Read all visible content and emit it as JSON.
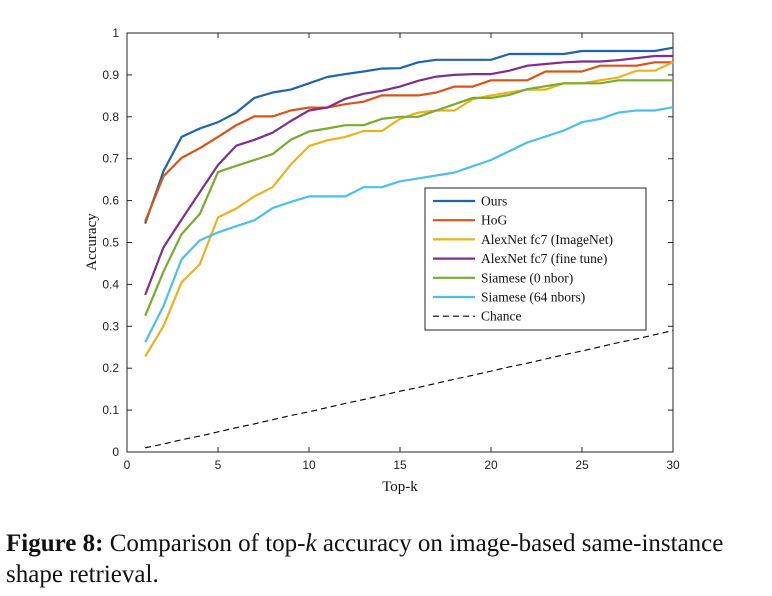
{
  "caption": {
    "label": "Figure 8:",
    "text_before": " Comparison of top-",
    "math": "k",
    "text_after": " accuracy on image-based same-instance shape retrieval."
  },
  "chart_data": {
    "type": "line",
    "title": "",
    "xlabel": "Top-k",
    "ylabel": "Accuracy",
    "xlim": [
      0,
      30
    ],
    "ylim": [
      0,
      1
    ],
    "xticks": [
      0,
      5,
      10,
      15,
      20,
      25,
      30
    ],
    "yticks": [
      0,
      0.1,
      0.2,
      0.3,
      0.4,
      0.5,
      0.6,
      0.7,
      0.8,
      0.9,
      1
    ],
    "ytick_labels": [
      "0",
      "0.1",
      "0.2",
      "0.3",
      "0.4",
      "0.5",
      "0.6",
      "0.7",
      "0.8",
      "0.9",
      "1"
    ],
    "grid": false,
    "legend_position": "center-right",
    "x": [
      1,
      2,
      3,
      4,
      5,
      6,
      7,
      8,
      9,
      10,
      11,
      12,
      13,
      14,
      15,
      16,
      17,
      18,
      19,
      20,
      21,
      22,
      23,
      24,
      25,
      26,
      27,
      28,
      29,
      30
    ],
    "series": [
      {
        "name": "Ours",
        "color": "#1f64ae",
        "dash": "solid",
        "values": [
          0.545,
          0.67,
          0.752,
          0.772,
          0.787,
          0.81,
          0.845,
          0.858,
          0.865,
          0.88,
          0.895,
          0.902,
          0.908,
          0.915,
          0.916,
          0.93,
          0.936,
          0.936,
          0.936,
          0.936,
          0.95,
          0.95,
          0.95,
          0.95,
          0.957,
          0.957,
          0.957,
          0.957,
          0.957,
          0.965
        ]
      },
      {
        "name": "HoG",
        "color": "#d95319",
        "dash": "solid",
        "values": [
          0.55,
          0.658,
          0.702,
          0.725,
          0.752,
          0.78,
          0.801,
          0.801,
          0.815,
          0.822,
          0.822,
          0.83,
          0.836,
          0.851,
          0.851,
          0.851,
          0.858,
          0.872,
          0.872,
          0.887,
          0.887,
          0.887,
          0.908,
          0.908,
          0.908,
          0.922,
          0.922,
          0.922,
          0.93,
          0.93
        ]
      },
      {
        "name": "AlexNet fc7 (ImageNet)",
        "color": "#edb120",
        "dash": "solid",
        "values": [
          0.228,
          0.3,
          0.405,
          0.448,
          0.56,
          0.581,
          0.61,
          0.632,
          0.686,
          0.73,
          0.744,
          0.752,
          0.766,
          0.766,
          0.795,
          0.81,
          0.815,
          0.815,
          0.842,
          0.851,
          0.858,
          0.865,
          0.865,
          0.88,
          0.88,
          0.887,
          0.894,
          0.91,
          0.91,
          0.93
        ]
      },
      {
        "name": "AlexNet fc7 (fine tune)",
        "color": "#7e2f8e",
        "dash": "solid",
        "values": [
          0.375,
          0.488,
          0.555,
          0.62,
          0.685,
          0.731,
          0.745,
          0.762,
          0.79,
          0.815,
          0.822,
          0.843,
          0.855,
          0.862,
          0.872,
          0.886,
          0.896,
          0.9,
          0.902,
          0.902,
          0.91,
          0.922,
          0.926,
          0.93,
          0.932,
          0.932,
          0.935,
          0.94,
          0.945,
          0.945
        ]
      },
      {
        "name": "Siamese (0 nbor)",
        "color": "#77ac30",
        "dash": "solid",
        "values": [
          0.325,
          0.43,
          0.52,
          0.568,
          0.668,
          0.683,
          0.697,
          0.711,
          0.745,
          0.765,
          0.772,
          0.78,
          0.78,
          0.795,
          0.8,
          0.8,
          0.815,
          0.83,
          0.845,
          0.845,
          0.852,
          0.866,
          0.873,
          0.88,
          0.88,
          0.88,
          0.887,
          0.887,
          0.887,
          0.887
        ]
      },
      {
        "name": "Siamese (64 nbors)",
        "color": "#4dbeee",
        "dash": "solid",
        "values": [
          0.262,
          0.348,
          0.46,
          0.505,
          0.524,
          0.539,
          0.553,
          0.582,
          0.597,
          0.61,
          0.61,
          0.61,
          0.632,
          0.632,
          0.646,
          0.653,
          0.66,
          0.667,
          0.682,
          0.697,
          0.718,
          0.739,
          0.753,
          0.767,
          0.787,
          0.795,
          0.81,
          0.815,
          0.815,
          0.823
        ]
      },
      {
        "name": "Chance",
        "color": "#000000",
        "dash": "dashed",
        "values": [
          0.01,
          0.019,
          0.029,
          0.038,
          0.048,
          0.058,
          0.067,
          0.077,
          0.087,
          0.096,
          0.106,
          0.116,
          0.125,
          0.135,
          0.145,
          0.154,
          0.164,
          0.174,
          0.183,
          0.193,
          0.203,
          0.212,
          0.222,
          0.232,
          0.241,
          0.251,
          0.261,
          0.27,
          0.28,
          0.29
        ]
      }
    ]
  }
}
